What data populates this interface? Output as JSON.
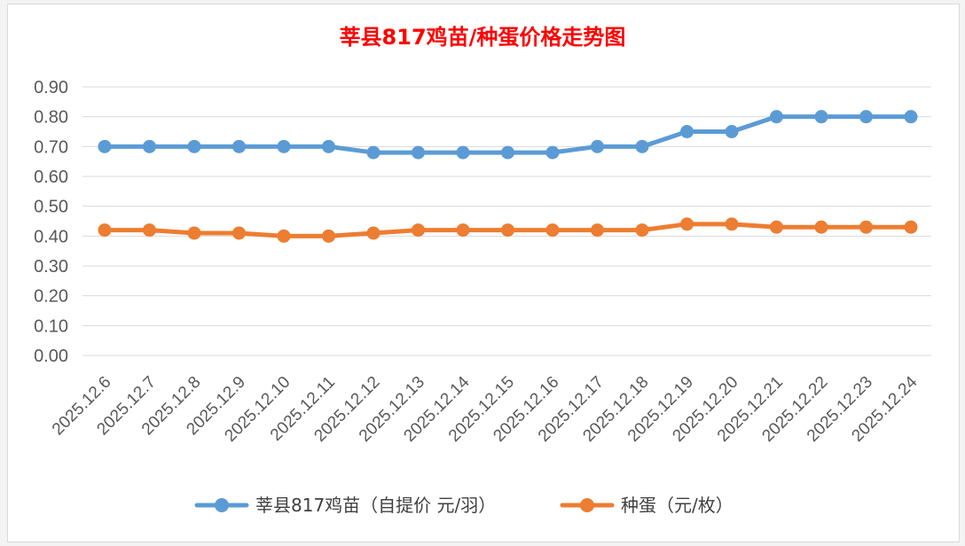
{
  "chart_data": {
    "type": "line",
    "title": "莘县817鸡苗/种蛋价格走势图",
    "categories": [
      "2025.12.6",
      "2025.12.7",
      "2025.12.8",
      "2025.12.9",
      "2025.12.10",
      "2025.12.11",
      "2025.12.12",
      "2025.12.13",
      "2025.12.14",
      "2025.12.15",
      "2025.12.16",
      "2025.12.17",
      "2025.12.18",
      "2025.12.19",
      "2025.12.20",
      "2025.12.21",
      "2025.12.22",
      "2025.12.23",
      "2025.12.24"
    ],
    "series": [
      {
        "name": "莘县817鸡苗（自提价 元/羽）",
        "color": "#5b9bd5",
        "values": [
          0.7,
          0.7,
          0.7,
          0.7,
          0.7,
          0.7,
          0.68,
          0.68,
          0.68,
          0.68,
          0.68,
          0.7,
          0.7,
          0.75,
          0.75,
          0.8,
          0.8,
          0.8,
          0.8
        ]
      },
      {
        "name": "种蛋（元/枚）",
        "color": "#ed7d31",
        "values": [
          0.42,
          0.42,
          0.41,
          0.41,
          0.4,
          0.4,
          0.41,
          0.42,
          0.42,
          0.42,
          0.42,
          0.42,
          0.42,
          0.44,
          0.44,
          0.43,
          0.43,
          0.43,
          0.43
        ]
      }
    ],
    "yticks": [
      "0.00",
      "0.10",
      "0.20",
      "0.30",
      "0.40",
      "0.50",
      "0.60",
      "0.70",
      "0.80",
      "0.90"
    ],
    "ylim": [
      0,
      0.9
    ],
    "grid": true,
    "legend": "bottom",
    "xlabel": "",
    "ylabel": ""
  }
}
